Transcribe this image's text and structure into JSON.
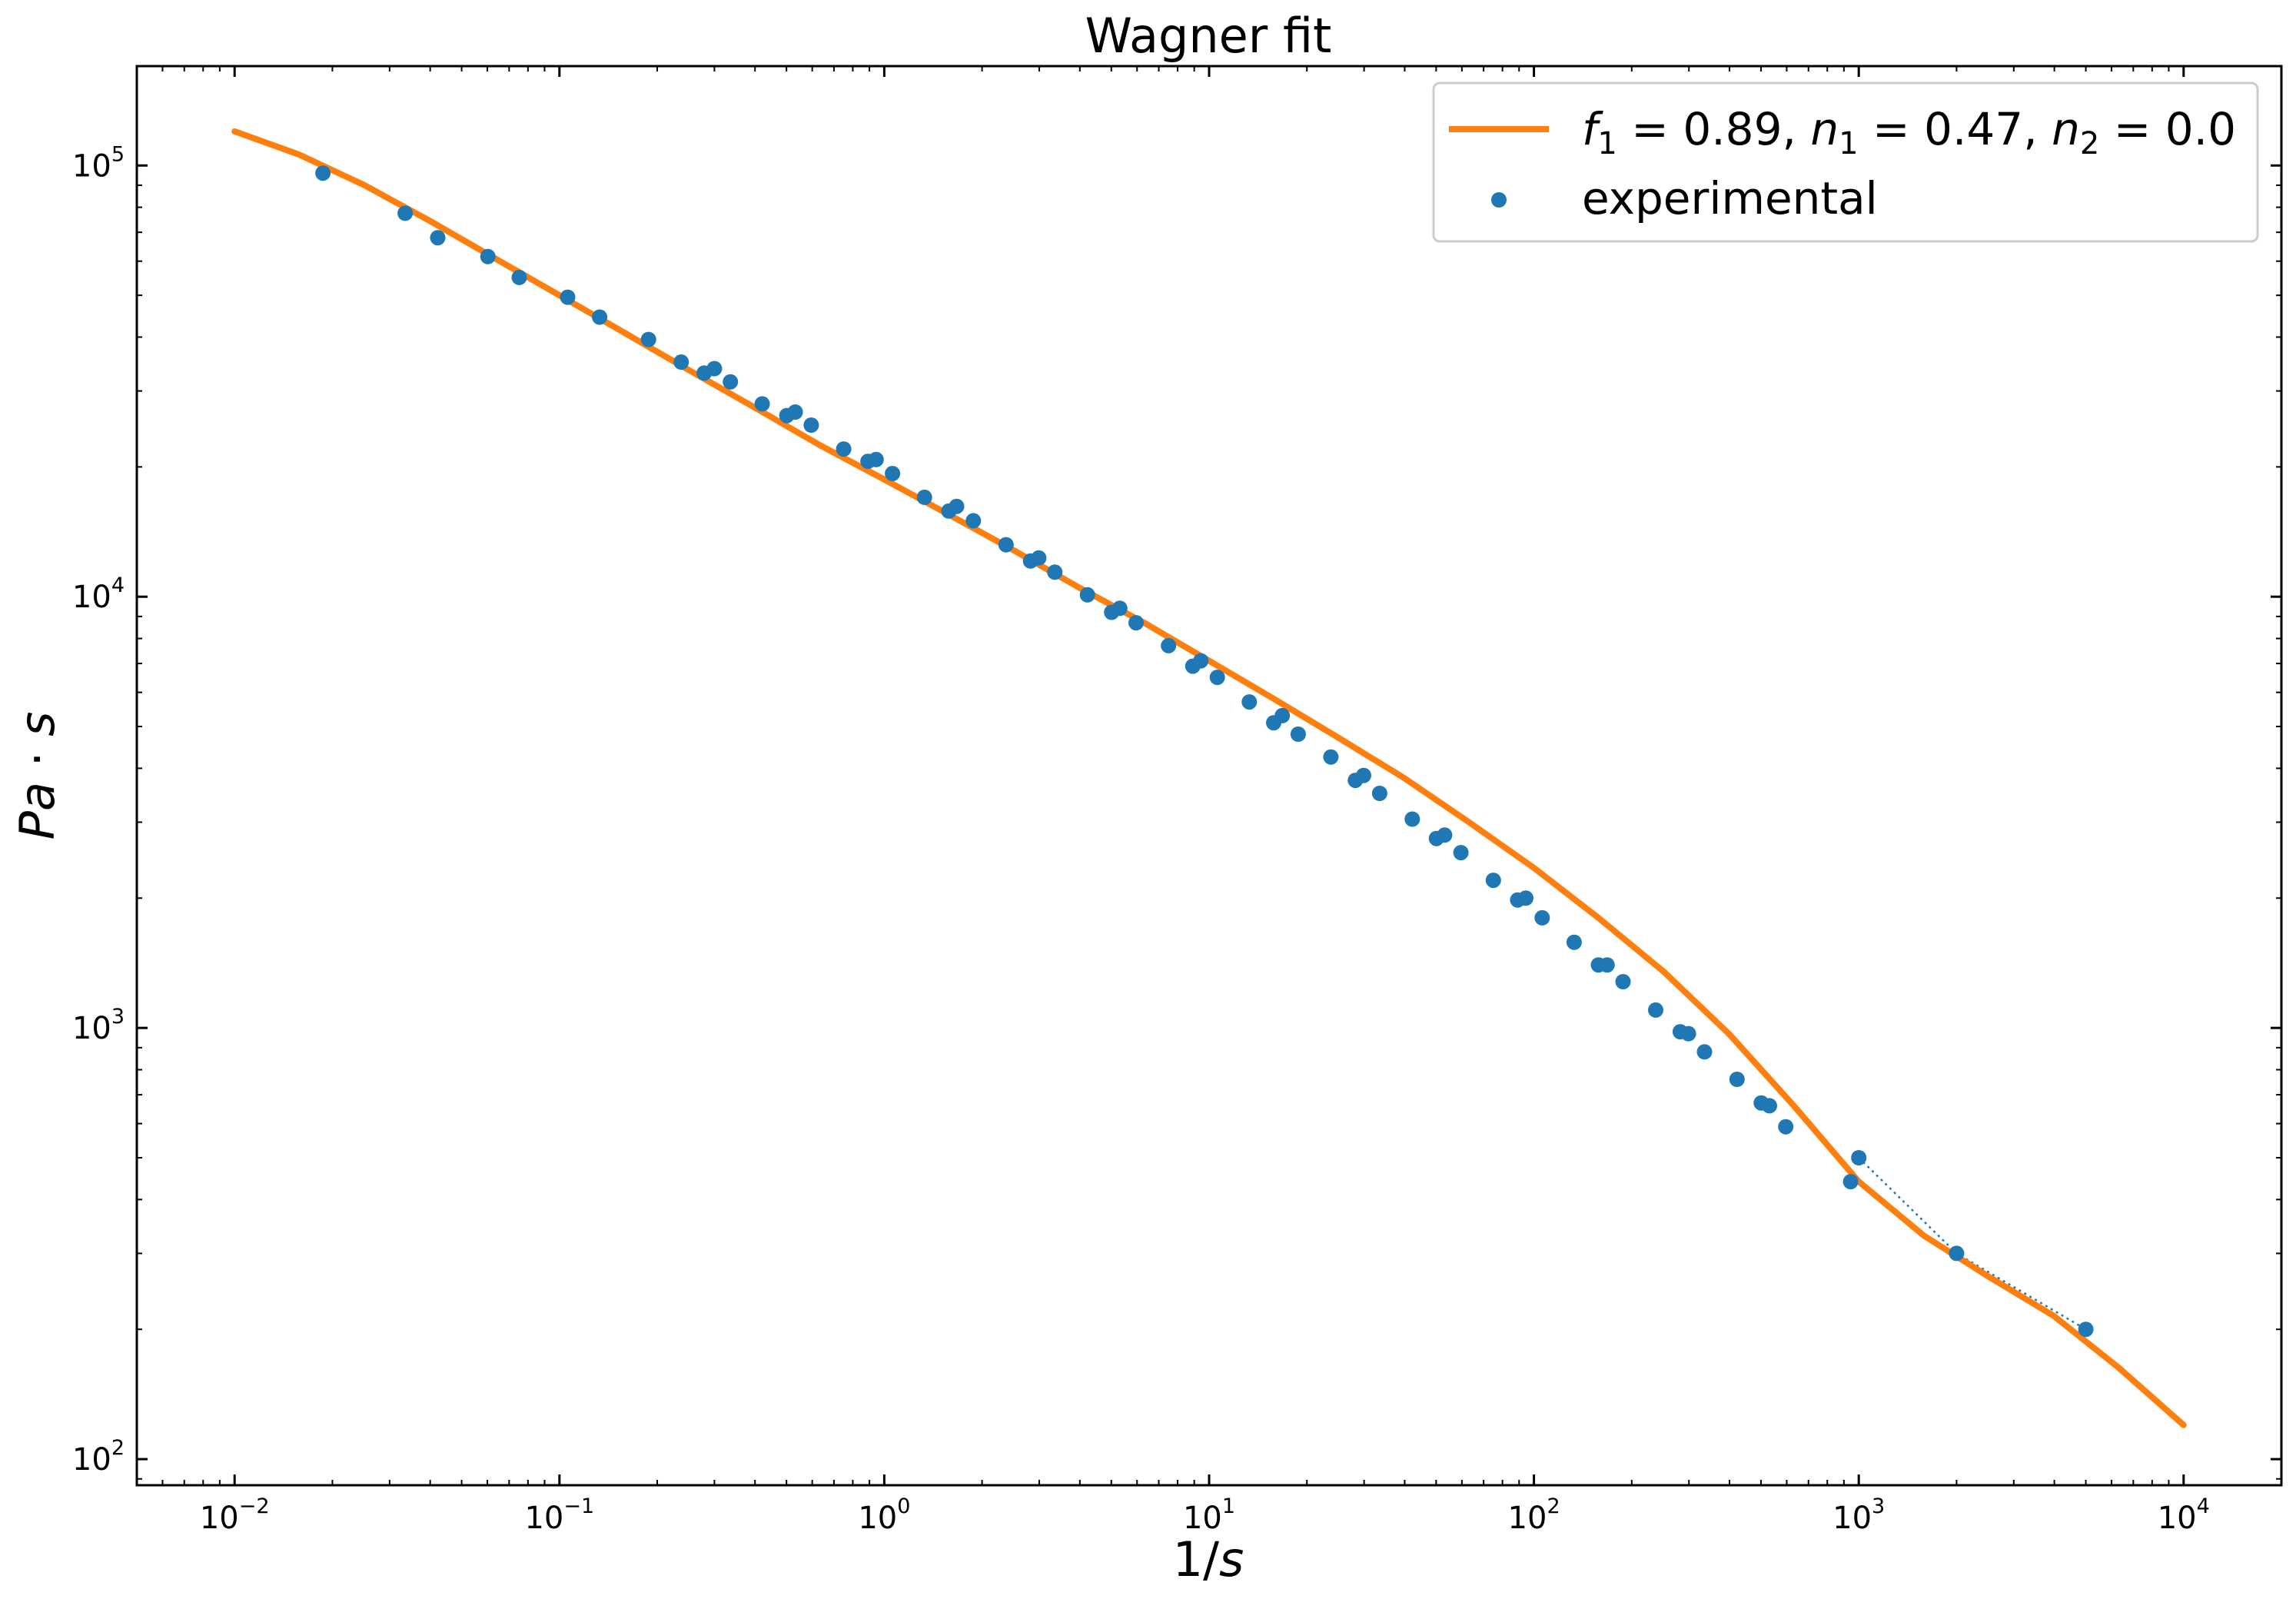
{
  "chart_data": {
    "type": "line",
    "title": "Wagner fit",
    "xlabel": "1/s",
    "ylabel": "Pa · s",
    "x_scale": "log",
    "y_scale": "log",
    "xlim": [
      0.005,
      20000
    ],
    "ylim": [
      87,
      170000
    ],
    "grid": false,
    "legend_position": "top-right",
    "x_ticks": [
      {
        "value": 0.01,
        "base": "10",
        "exp": "−2"
      },
      {
        "value": 0.1,
        "base": "10",
        "exp": "−1"
      },
      {
        "value": 1,
        "base": "10",
        "exp": "0"
      },
      {
        "value": 10,
        "base": "10",
        "exp": "1"
      },
      {
        "value": 100,
        "base": "10",
        "exp": "2"
      },
      {
        "value": 1000,
        "base": "10",
        "exp": "3"
      },
      {
        "value": 10000,
        "base": "10",
        "exp": "4"
      }
    ],
    "y_ticks": [
      {
        "value": 100,
        "base": "10",
        "exp": "2"
      },
      {
        "value": 1000,
        "base": "10",
        "exp": "3"
      },
      {
        "value": 10000,
        "base": "10",
        "exp": "4"
      },
      {
        "value": 100000,
        "base": "10",
        "exp": "5"
      }
    ],
    "legend": {
      "fit": {
        "f": "f",
        "f_sub": "1",
        "f_val": " = 0.89, ",
        "n1": "n",
        "n1_sub": "1",
        "n1_val": " = 0.47, ",
        "n2": "n",
        "n2_sub": "2",
        "n2_val": " = 0.0"
      },
      "experimental": "experimental"
    },
    "series": [
      {
        "name": "f1 = 0.89, n1 = 0.47, n2 = 0.0",
        "kind": "line",
        "color": "#ff7f0e",
        "points": [
          [
            0.01,
            120000
          ],
          [
            0.0158,
            106000
          ],
          [
            0.0251,
            90000
          ],
          [
            0.0398,
            74500
          ],
          [
            0.0631,
            61000
          ],
          [
            0.1,
            50000
          ],
          [
            0.158,
            41000
          ],
          [
            0.251,
            33500
          ],
          [
            0.398,
            27500
          ],
          [
            0.631,
            22500
          ],
          [
            1,
            18700
          ],
          [
            1.58,
            15500
          ],
          [
            2.51,
            12800
          ],
          [
            3.98,
            10500
          ],
          [
            6.31,
            8700
          ],
          [
            10,
            7100
          ],
          [
            15.8,
            5800
          ],
          [
            25.1,
            4700
          ],
          [
            39.8,
            3800
          ],
          [
            63.1,
            3000
          ],
          [
            100,
            2350
          ],
          [
            158,
            1800
          ],
          [
            251,
            1350
          ],
          [
            398,
            970
          ],
          [
            631,
            660
          ],
          [
            1000,
            440
          ],
          [
            1585,
            330
          ],
          [
            2512,
            265
          ],
          [
            3981,
            215
          ],
          [
            6310,
            163
          ],
          [
            10000,
            120
          ]
        ]
      },
      {
        "name": "experimental",
        "kind": "scatter",
        "color": "#1f77b4",
        "points": [
          [
            0.0187,
            96000
          ],
          [
            0.0335,
            77500
          ],
          [
            0.0422,
            68000
          ],
          [
            0.0602,
            61500
          ],
          [
            0.0752,
            55000
          ],
          [
            0.106,
            49500
          ],
          [
            0.133,
            44500
          ],
          [
            0.188,
            39500
          ],
          [
            0.237,
            35000
          ],
          [
            0.279,
            33000
          ],
          [
            0.3,
            33800
          ],
          [
            0.336,
            31500
          ],
          [
            0.421,
            28000
          ],
          [
            0.501,
            26300
          ],
          [
            0.532,
            26800
          ],
          [
            0.596,
            25000
          ],
          [
            0.75,
            22000
          ],
          [
            0.891,
            20600
          ],
          [
            0.944,
            20800
          ],
          [
            1.06,
            19300
          ],
          [
            1.33,
            17000
          ],
          [
            1.58,
            15800
          ],
          [
            1.67,
            16200
          ],
          [
            1.88,
            15000
          ],
          [
            2.37,
            13200
          ],
          [
            2.82,
            12100
          ],
          [
            2.99,
            12300
          ],
          [
            3.35,
            11400
          ],
          [
            4.22,
            10100
          ],
          [
            5.01,
            9200
          ],
          [
            5.31,
            9400
          ],
          [
            5.96,
            8700
          ],
          [
            7.5,
            7700
          ],
          [
            8.91,
            6900
          ],
          [
            9.43,
            7100
          ],
          [
            10.6,
            6500
          ],
          [
            13.3,
            5700
          ],
          [
            15.8,
            5100
          ],
          [
            16.8,
            5300
          ],
          [
            18.8,
            4800
          ],
          [
            23.7,
            4250
          ],
          [
            28.2,
            3750
          ],
          [
            29.9,
            3850
          ],
          [
            33.5,
            3500
          ],
          [
            42.2,
            3050
          ],
          [
            50.1,
            2750
          ],
          [
            53.1,
            2800
          ],
          [
            59.6,
            2550
          ],
          [
            75,
            2200
          ],
          [
            89.1,
            1980
          ],
          [
            94.4,
            2000
          ],
          [
            106,
            1800
          ],
          [
            133,
            1580
          ],
          [
            158,
            1400
          ],
          [
            168,
            1400
          ],
          [
            188,
            1280
          ],
          [
            237,
            1100
          ],
          [
            282,
            980
          ],
          [
            299,
            970
          ],
          [
            335,
            880
          ],
          [
            422,
            760
          ],
          [
            501,
            670
          ],
          [
            531,
            660
          ],
          [
            596,
            590
          ],
          [
            944,
            440
          ],
          [
            1000,
            500
          ],
          [
            2000,
            300
          ],
          [
            5000,
            200
          ]
        ]
      }
    ]
  }
}
